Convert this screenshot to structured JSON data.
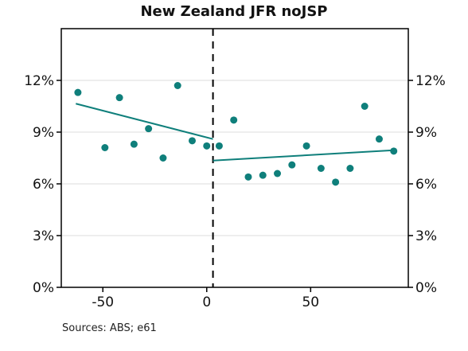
{
  "source_note": "Sources: ABS; e61",
  "colors": {
    "series": "#0f7f7b",
    "grid": "#dcdcdc",
    "axis": "#000000",
    "cutoff": "#000000"
  },
  "chart_data": {
    "type": "scatter",
    "title": "New Zealand JFR noJSP",
    "xlabel": "",
    "ylabel": "",
    "xlim": [
      -70,
      97
    ],
    "ylim": [
      0,
      15
    ],
    "x_ticks": [
      -50,
      0,
      50
    ],
    "x_tick_labels": [
      "-50",
      "0",
      "50"
    ],
    "y_ticks": [
      0,
      3,
      6,
      9,
      12
    ],
    "y_tick_labels": [
      "0%",
      "3%",
      "6%",
      "9%",
      "12%"
    ],
    "y_axis_sides": [
      "left",
      "right"
    ],
    "grid": {
      "horizontal": true,
      "vertical": false
    },
    "cutoff_x": 3,
    "points": [
      {
        "x": -62,
        "y": 11.3
      },
      {
        "x": -49,
        "y": 8.1
      },
      {
        "x": -42,
        "y": 11.0
      },
      {
        "x": -35,
        "y": 8.3
      },
      {
        "x": -28,
        "y": 9.2
      },
      {
        "x": -21,
        "y": 7.5
      },
      {
        "x": -14,
        "y": 11.7
      },
      {
        "x": -7,
        "y": 8.5
      },
      {
        "x": 0,
        "y": 8.2
      },
      {
        "x": 6,
        "y": 8.2
      },
      {
        "x": 13,
        "y": 9.7
      },
      {
        "x": 20,
        "y": 6.4
      },
      {
        "x": 27,
        "y": 6.5
      },
      {
        "x": 34,
        "y": 6.6
      },
      {
        "x": 41,
        "y": 7.1
      },
      {
        "x": 48,
        "y": 8.2
      },
      {
        "x": 55,
        "y": 6.9
      },
      {
        "x": 62,
        "y": 6.1
      },
      {
        "x": 69,
        "y": 6.9
      },
      {
        "x": 76,
        "y": 10.5
      },
      {
        "x": 83,
        "y": 8.6
      },
      {
        "x": 90,
        "y": 7.9
      }
    ],
    "fit_lines": [
      {
        "x": [
          -63,
          3
        ],
        "y": [
          10.65,
          8.6
        ]
      },
      {
        "x": [
          3,
          90
        ],
        "y": [
          7.35,
          7.95
        ]
      }
    ]
  }
}
